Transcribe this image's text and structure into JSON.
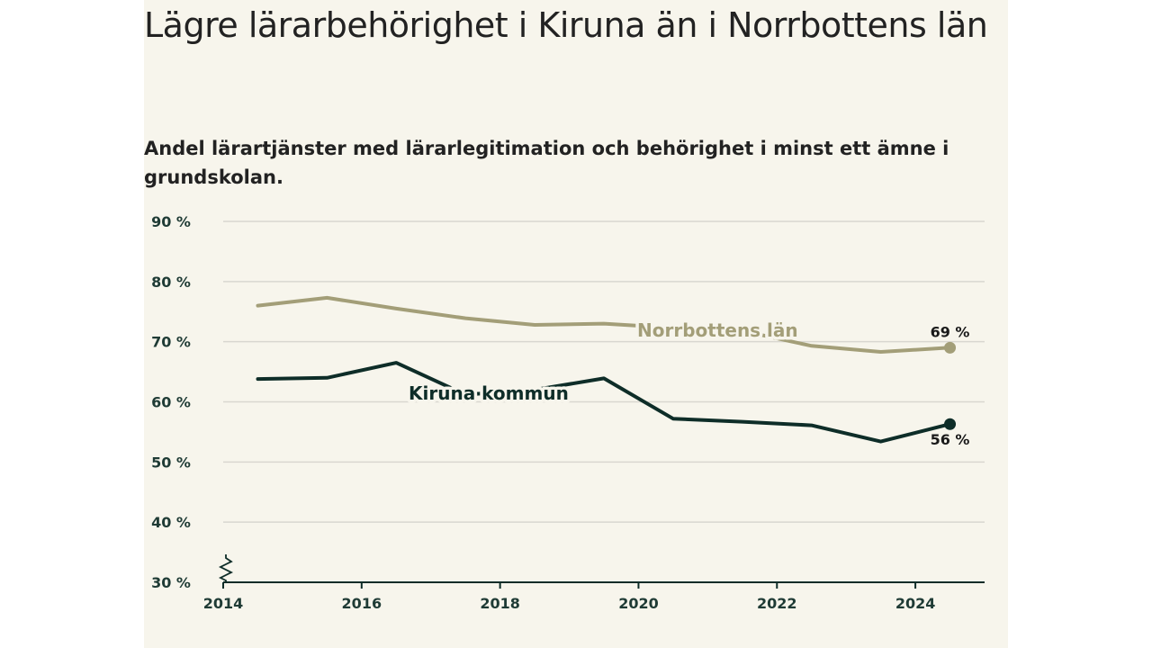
{
  "chart_data": {
    "type": "line",
    "title": "Lägre lärarbehörighet i Kiruna än i Norrbottens län",
    "subtitle": "Andel lärartjänster med lärarlegitimation och behörighet i minst ett ämne i grundskolan.",
    "x": [
      2014.5,
      2015.5,
      2016.5,
      2017.5,
      2018.5,
      2019.5,
      2020.5,
      2021.5,
      2022.5,
      2023.5,
      2024.5
    ],
    "xlim": [
      2014,
      2025
    ],
    "ylim": [
      30,
      90
    ],
    "x_ticks": [
      2014,
      2016,
      2018,
      2020,
      2022,
      2024
    ],
    "y_ticks": [
      30,
      40,
      50,
      60,
      70,
      80,
      90
    ],
    "y_tick_labels": [
      "30 %",
      "40 %",
      "50 %",
      "60 %",
      "70 %",
      "80 %",
      "90 %"
    ],
    "axis_break": true,
    "grid": true,
    "series": [
      {
        "name": "Norrbottens län",
        "color": "#a39e78",
        "values": [
          76.0,
          77.3,
          75.5,
          73.9,
          72.8,
          73.0,
          72.3,
          71.8,
          69.3,
          68.3,
          69.0
        ],
        "end_label": "69 %"
      },
      {
        "name": "Kiruna kommun",
        "color": "#0e2d28",
        "values": [
          63.8,
          64.0,
          66.5,
          61.2,
          62.0,
          63.9,
          57.2,
          56.7,
          56.1,
          53.4,
          56.3
        ],
        "end_label": "56 %"
      }
    ]
  }
}
